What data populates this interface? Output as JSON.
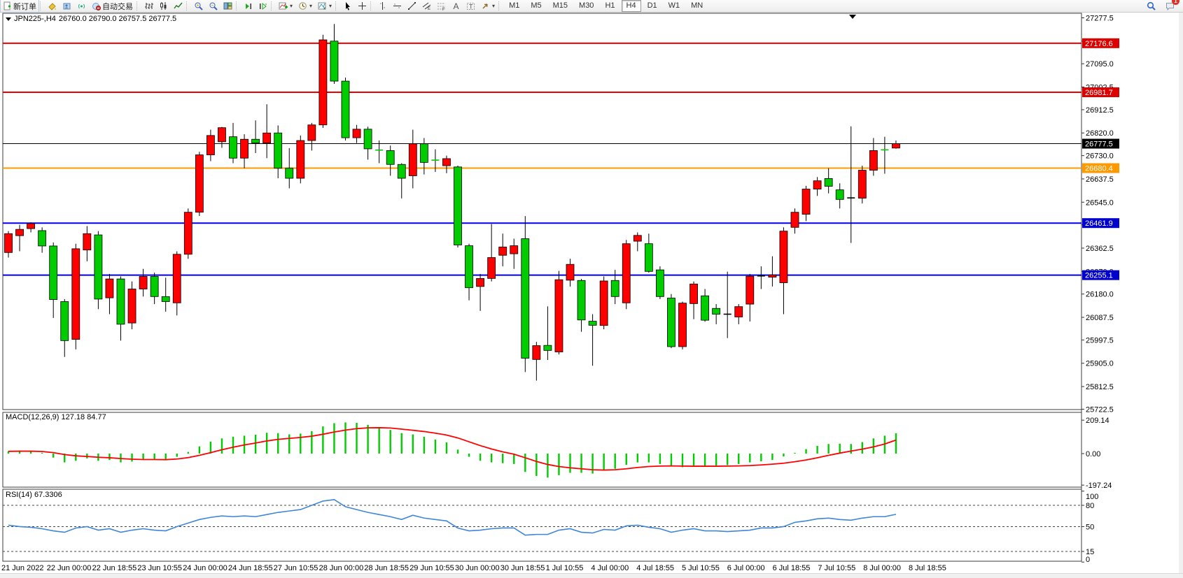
{
  "toolbar": {
    "groups": [
      {
        "buttons": [
          {
            "name": "new-order",
            "label": "新订单"
          }
        ]
      },
      {
        "buttons": [
          {
            "name": "styler"
          },
          {
            "name": "profiles"
          },
          {
            "name": "signals"
          },
          {
            "name": "auto-trading",
            "label": "自动交易"
          }
        ]
      },
      {
        "buttons": [
          {
            "name": "bar-chart"
          },
          {
            "name": "candlestick-chart"
          },
          {
            "name": "line-chart"
          }
        ]
      },
      {
        "buttons": [
          {
            "name": "zoom-in"
          },
          {
            "name": "zoom-out"
          },
          {
            "name": "tile-windows"
          }
        ]
      },
      {
        "buttons": [
          {
            "name": "auto-scroll"
          },
          {
            "name": "chart-shift"
          }
        ]
      },
      {
        "buttons": [
          {
            "name": "indicators",
            "dropdown": true
          },
          {
            "name": "periods",
            "dropdown": true
          },
          {
            "name": "templates",
            "dropdown": true
          }
        ]
      },
      {
        "buttons": [
          {
            "name": "cursor"
          },
          {
            "name": "crosshair"
          }
        ]
      },
      {
        "buttons": [
          {
            "name": "vertical-line"
          },
          {
            "name": "horizontal-line"
          },
          {
            "name": "trendline"
          },
          {
            "name": "equidistant-channel"
          },
          {
            "name": "fibonacci"
          },
          {
            "name": "text"
          },
          {
            "name": "text-label"
          },
          {
            "name": "arrows",
            "dropdown": true
          }
        ]
      }
    ],
    "timeframes": [
      "M1",
      "M5",
      "M15",
      "M30",
      "H1",
      "H4",
      "D1",
      "W1",
      "MN"
    ],
    "active_timeframe": "H4",
    "right_buttons": [
      {
        "name": "search"
      },
      {
        "name": "chat",
        "badge": "1"
      }
    ]
  },
  "chart": {
    "symbol_title": "JPN225-,H4",
    "ohlc_text": "26760.0 26790.0 26757.5 26777.5",
    "current_price": 26777.5,
    "macd_label": "MACD(12,26,9) 127.18 84.77",
    "rsi_label": "RSI(14) 67.3306"
  },
  "price_axis": {
    "ticks": [
      27277.5,
      27185.0,
      27095.0,
      27002.5,
      26912.5,
      26820.0,
      26730.0,
      26637.5,
      26545.0,
      26455.0,
      26362.5,
      26270.0,
      26180.0,
      26087.5,
      25997.5,
      25905.0,
      25812.5,
      25722.5
    ],
    "tags": [
      {
        "value": "27176.6",
        "price": 27176.6,
        "color": "#dd0000"
      },
      {
        "value": "26981.7",
        "price": 26981.7,
        "color": "#dd0000"
      },
      {
        "value": "26777.5",
        "price": 26777.5,
        "color": "#000000"
      },
      {
        "value": "26680.4",
        "price": 26680.4,
        "color": "#ff9900"
      },
      {
        "value": "26461.9",
        "price": 26461.9,
        "color": "#0000cc"
      },
      {
        "value": "26255.1",
        "price": 26255.1,
        "color": "#0000cc"
      }
    ]
  },
  "hlines": [
    {
      "price": 27176.6,
      "color": "#ee0000",
      "width": 2
    },
    {
      "price": 26981.7,
      "color": "#ee0000",
      "width": 2
    },
    {
      "price": 26680.4,
      "color": "#ff9900",
      "width": 2
    },
    {
      "price": 26461.9,
      "color": "#0000ee",
      "width": 2
    },
    {
      "price": 26255.1,
      "color": "#0000ee",
      "width": 2
    },
    {
      "price": 26777.5,
      "color": "#000000",
      "width": 1
    }
  ],
  "chart_data": {
    "type": "candlestick",
    "up_color": "#ff0000",
    "down_color": "#00cc00",
    "candles": [
      [
        26345,
        26430,
        26325,
        26420
      ],
      [
        26412,
        26455,
        26350,
        26437
      ],
      [
        26440,
        26465,
        26425,
        26460
      ],
      [
        26432,
        26445,
        26344,
        26371
      ],
      [
        26371,
        26385,
        26085,
        26158
      ],
      [
        26150,
        26160,
        25930,
        25995
      ],
      [
        26000,
        26380,
        25960,
        26360
      ],
      [
        26355,
        26450,
        26310,
        26420
      ],
      [
        26415,
        26430,
        26120,
        26160
      ],
      [
        26165,
        26260,
        26100,
        26240
      ],
      [
        26240,
        26250,
        25995,
        26060
      ],
      [
        26065,
        26230,
        26040,
        26200
      ],
      [
        26200,
        26280,
        26170,
        26250
      ],
      [
        26250,
        26265,
        26140,
        26170
      ],
      [
        26170,
        26245,
        26110,
        26150
      ],
      [
        26145,
        26350,
        26095,
        26338
      ],
      [
        26338,
        26520,
        26320,
        26505
      ],
      [
        26505,
        26745,
        26490,
        26733
      ],
      [
        26733,
        26833,
        26708,
        26810
      ],
      [
        26785,
        26844,
        26761,
        26841
      ],
      [
        26805,
        26860,
        26700,
        26720
      ],
      [
        26720,
        26815,
        26680,
        26795
      ],
      [
        26795,
        26870,
        26740,
        26780
      ],
      [
        26780,
        26934,
        26720,
        26820
      ],
      [
        26820,
        26850,
        26640,
        26680
      ],
      [
        26680,
        26760,
        26600,
        26640
      ],
      [
        26640,
        26810,
        26620,
        26790
      ],
      [
        26790,
        26860,
        26750,
        26852
      ],
      [
        26852,
        27210,
        26840,
        27190
      ],
      [
        27185,
        27253,
        27015,
        27026
      ],
      [
        27026,
        27040,
        26790,
        26801
      ],
      [
        26801,
        26852,
        26780,
        26835
      ],
      [
        26835,
        26845,
        26714,
        26757
      ],
      [
        26752,
        26790,
        26700,
        26750
      ],
      [
        26750,
        26770,
        26650,
        26695
      ],
      [
        26695,
        26700,
        26560,
        26640
      ],
      [
        26650,
        26833,
        26600,
        26777
      ],
      [
        26777,
        26800,
        26655,
        26703
      ],
      [
        26712,
        26755,
        26665,
        26708
      ],
      [
        26690,
        26730,
        26660,
        26718
      ],
      [
        26685,
        26690,
        26365,
        26375
      ],
      [
        26372,
        26380,
        26155,
        26205
      ],
      [
        26210,
        26260,
        26113,
        26242
      ],
      [
        26242,
        26458,
        26230,
        26325
      ],
      [
        26334,
        26420,
        26290,
        26367
      ],
      [
        26340,
        26400,
        26280,
        26372
      ],
      [
        26400,
        26490,
        25870,
        25925
      ],
      [
        25920,
        25990,
        25836,
        25975
      ],
      [
        25976,
        26131,
        25918,
        25956
      ],
      [
        25950,
        26272,
        25940,
        26237
      ],
      [
        26235,
        26320,
        26210,
        26298
      ],
      [
        26234,
        26240,
        26030,
        26077
      ],
      [
        26072,
        26100,
        25895,
        26056
      ],
      [
        26055,
        26250,
        26040,
        26232
      ],
      [
        26234,
        26276,
        26140,
        26170
      ],
      [
        26145,
        26395,
        26120,
        26380
      ],
      [
        26390,
        26425,
        26350,
        26413
      ],
      [
        26380,
        26420,
        26265,
        26270
      ],
      [
        26276,
        26290,
        26160,
        26170
      ],
      [
        26164,
        26180,
        25965,
        25971
      ],
      [
        25971,
        26150,
        25960,
        26144
      ],
      [
        26142,
        26230,
        26080,
        26220
      ],
      [
        26173,
        26200,
        26070,
        26076
      ],
      [
        26123,
        26140,
        26060,
        26100
      ],
      [
        26100,
        26269,
        26005,
        26100
      ],
      [
        26089,
        26140,
        26060,
        26130
      ],
      [
        26140,
        26260,
        26071,
        26251
      ],
      [
        26250,
        26290,
        26200,
        26252
      ],
      [
        26247,
        26330,
        26210,
        26256
      ],
      [
        26225,
        26445,
        26100,
        26430
      ],
      [
        26445,
        26520,
        26420,
        26505
      ],
      [
        26497,
        26610,
        26470,
        26597
      ],
      [
        26597,
        26645,
        26570,
        26630
      ],
      [
        26639,
        26680,
        26580,
        26608
      ],
      [
        26594,
        26620,
        26520,
        26556
      ],
      [
        26560,
        26846,
        26383,
        26562
      ],
      [
        26561,
        26690,
        26540,
        26672
      ],
      [
        26672,
        26800,
        26650,
        26750
      ],
      [
        26753,
        26805,
        26658,
        26752
      ],
      [
        26760,
        26790,
        26757.5,
        26777.5
      ]
    ],
    "x_labels": [
      "21 Jun 2022",
      "22 Jun 00:00",
      "22 Jun 18:55",
      "23 Jun 10:55",
      "24 Jun 00:00",
      "24 Jun 18:55",
      "27 Jun 10:55",
      "28 Jun 00:00",
      "28 Jun 18:55",
      "29 Jun 10:55",
      "30 Jun 00:00",
      "30 Jun 18:55",
      "1 Jul 10:55",
      "4 Jul 00:00",
      "4 Jul 18:55",
      "5 Jul 10:55",
      "6 Jul 00:00",
      "6 Jul 18:55",
      "7 Jul 10:55",
      "8 Jul 00:00",
      "8 Jul 18:55"
    ],
    "indicators": {
      "macd": {
        "name": "MACD(12,26,9)",
        "value_main": 127.18,
        "value_signal": 84.77,
        "axis_ticks": [
          209.14,
          0.0,
          -197.24
        ],
        "histogram_color": "#00cc00",
        "signal_color": "#ff0000",
        "histogram": [
          15,
          18,
          14,
          5,
          -25,
          -55,
          -45,
          -30,
          -45,
          -40,
          -55,
          -50,
          -40,
          -38,
          -40,
          -20,
          10,
          45,
          75,
          95,
          105,
          112,
          118,
          130,
          128,
          120,
          125,
          140,
          170,
          190,
          195,
          192,
          180,
          165,
          148,
          128,
          120,
          105,
          88,
          70,
          25,
          -20,
          -45,
          -55,
          -60,
          -65,
          -115,
          -140,
          -150,
          -135,
          -120,
          -120,
          -125,
          -105,
          -95,
          -70,
          -55,
          -55,
          -65,
          -80,
          -85,
          -80,
          -80,
          -75,
          -72,
          -65,
          -55,
          -48,
          -40,
          -18,
          5,
          28,
          48,
          60,
          62,
          60,
          72,
          95,
          112,
          127.18
        ],
        "signal": [
          14,
          15,
          15,
          13,
          6,
          -6,
          -14,
          -18,
          -23,
          -26,
          -31,
          -35,
          -37,
          -37,
          -38,
          -34,
          -25,
          -11,
          6,
          24,
          40,
          54,
          66,
          79,
          89,
          95,
          101,
          109,
          121,
          135,
          147,
          156,
          161,
          162,
          160,
          153,
          146,
          138,
          128,
          116,
          98,
          74,
          50,
          29,
          11,
          -4,
          -26,
          -49,
          -68,
          -81,
          -89,
          -95,
          -101,
          -103,
          -101,
          -95,
          -87,
          -81,
          -78,
          -77,
          -78,
          -79,
          -79,
          -79,
          -78,
          -77,
          -75,
          -71,
          -66,
          -60,
          -51,
          -40,
          -26,
          -11,
          3,
          16,
          28,
          42,
          60,
          84.77
        ]
      },
      "rsi": {
        "name": "RSI(14)",
        "value": 67.3306,
        "axis_ticks": [
          100,
          80,
          50,
          15,
          0
        ],
        "levels": [
          80,
          50,
          15
        ],
        "line_color": "#3e86d8",
        "values": [
          52,
          50,
          49,
          47,
          44,
          42,
          48,
          50,
          45,
          47,
          42,
          45,
          47,
          45,
          44,
          50,
          55,
          60,
          63,
          65,
          64,
          65,
          64,
          67,
          70,
          72,
          74,
          80,
          86,
          88,
          78,
          74,
          70,
          67,
          64,
          60,
          66,
          62,
          60,
          58,
          48,
          44,
          45,
          47,
          48,
          48,
          38,
          39,
          39,
          45,
          47,
          42,
          41,
          46,
          45,
          51,
          52,
          49,
          47,
          42,
          45,
          47,
          44,
          44,
          43,
          44,
          45,
          48,
          48,
          50,
          56,
          58,
          61,
          62,
          60,
          59,
          62,
          64,
          64,
          67.33
        ]
      }
    }
  }
}
